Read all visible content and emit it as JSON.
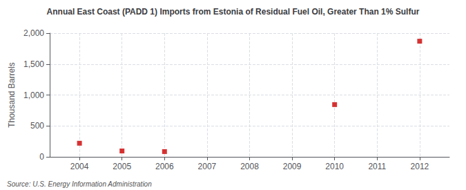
{
  "chart_data": {
    "type": "scatter",
    "title": "Annual East Coast (PADD 1) Imports from Estonia of Residual Fuel Oil, Greater Than 1% Sulfur",
    "ylabel": "Thousand Barrels",
    "annotations": [
      "Source: U.S. Energy Information Administration"
    ],
    "x": [
      2004,
      2005,
      2006,
      2010,
      2012
    ],
    "values": [
      220,
      95,
      85,
      845,
      1870
    ],
    "color": "#cc0000",
    "marker": "square",
    "xlim": [
      2003.3,
      2012.7
    ],
    "xticks": [
      2004,
      2005,
      2006,
      2007,
      2008,
      2009,
      2010,
      2011,
      2012
    ],
    "ylim": [
      0,
      2000
    ],
    "yticks": [
      0,
      500,
      {
        "value": 1000,
        "label": "1,000"
      },
      {
        "value": 1500,
        "label": "1,500"
      },
      {
        "value": 2000,
        "label": "2,000"
      }
    ],
    "grid": true
  }
}
